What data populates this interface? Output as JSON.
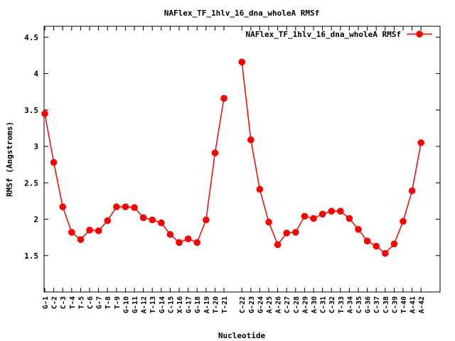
{
  "chart_data": {
    "type": "line",
    "title": "NAFlex_TF_1hlv_16_dna_wholeA RMSf",
    "xlabel": "Nucleotide",
    "ylabel": "RMSf (Angstroms)",
    "ylim": [
      1.0,
      4.65
    ],
    "yticks": [
      "1.5",
      "2",
      "2.5",
      "3",
      "3.5",
      "4",
      "4.5"
    ],
    "ytick_values": [
      1.5,
      2,
      2.5,
      3,
      3.5,
      4,
      4.5
    ],
    "grid": false,
    "legend_position": "top-right",
    "series_color": "#ff0000",
    "series": [
      {
        "name": "NAFlex_TF_1hlv_16_dna_wholeA RMSf",
        "segments": [
          {
            "categories": [
              "G-1",
              "C-2",
              "C-3",
              "T-4",
              "T-5",
              "C-6",
              "G-7",
              "T-8",
              "T-9",
              "G-10",
              "G-11",
              "A-12",
              "T-13",
              "G-14",
              "C-15",
              "X-16",
              "G-17",
              "G-18",
              "A-19",
              "T-20",
              "T-21"
            ],
            "values": [
              3.45,
              2.78,
              2.17,
              1.82,
              1.72,
              1.85,
              1.84,
              1.98,
              2.17,
              2.17,
              2.16,
              2.02,
              1.99,
              1.95,
              1.79,
              1.68,
              1.73,
              1.68,
              1.99,
              2.91,
              3.66
            ]
          },
          {
            "categories": [
              "C-22",
              "G-23",
              "G-24",
              "A-25",
              "A-26",
              "C-27",
              "C-28",
              "A-29",
              "A-30",
              "C-31",
              "C-32",
              "T-33",
              "A-34",
              "C-35",
              "G-36",
              "C-37",
              "C-38",
              "C-39",
              "T-40",
              "A-41",
              "A-42"
            ],
            "values": [
              4.16,
              3.09,
              2.41,
              1.96,
              1.65,
              1.81,
              1.82,
              2.04,
              2.01,
              2.07,
              2.11,
              2.11,
              2.01,
              1.86,
              1.7,
              1.63,
              1.53,
              1.66,
              1.97,
              2.39,
              3.05
            ]
          }
        ]
      }
    ]
  }
}
